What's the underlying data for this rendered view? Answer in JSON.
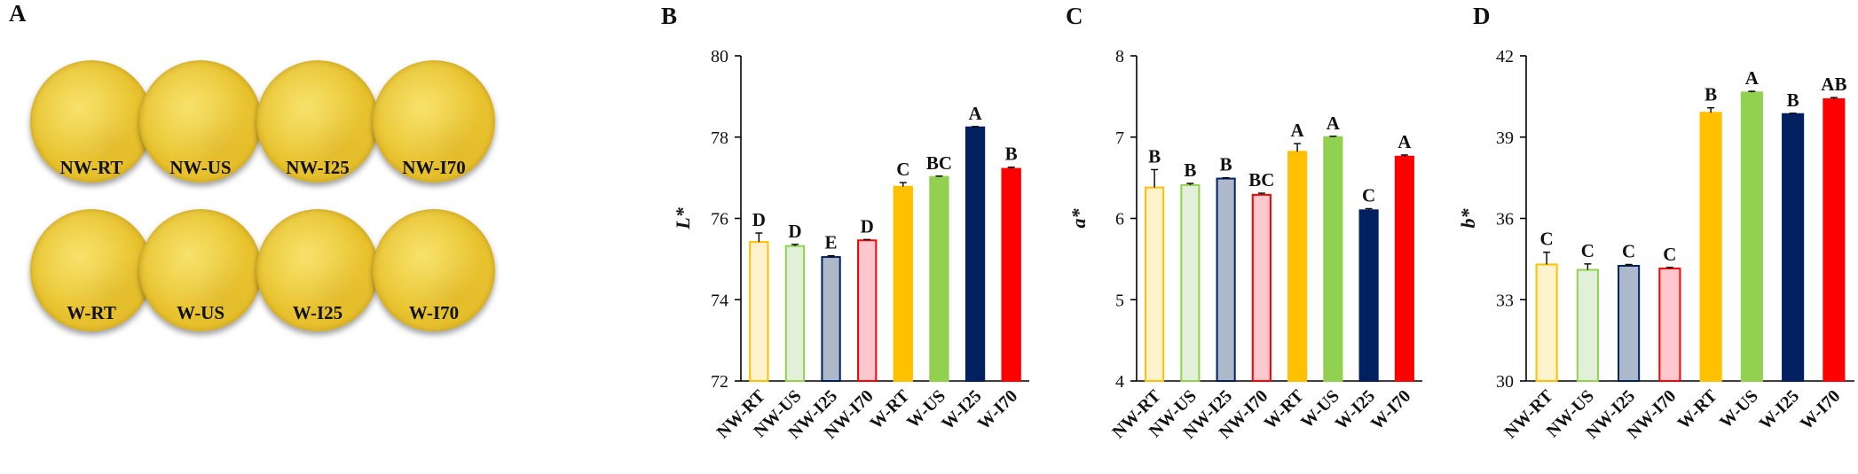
{
  "panels": {
    "A": {
      "letter": "A",
      "samples_row1": [
        "NW-RT",
        "NW-US",
        "NW-I25",
        "NW-I70"
      ],
      "samples_row2": [
        "W-RT",
        "W-US",
        "W-I25",
        "W-I70"
      ]
    }
  },
  "colors": {
    "RT": "#FFC000",
    "US": "#92D050",
    "I25": "#002060",
    "I70": "#FF0000",
    "RT_light": "#FFF2CC",
    "US_light": "#E2F0D9",
    "I25_light": "#ADB9CA",
    "I70_light": "#FFC7CE"
  },
  "chart_data": [
    {
      "panel": "B",
      "type": "bar",
      "categories": [
        "NW-RT",
        "NW-US",
        "NW-I25",
        "NW-I70",
        "W-RT",
        "W-US",
        "W-I25",
        "W-I70"
      ],
      "values": [
        75.42,
        75.32,
        75.05,
        75.46,
        76.78,
        77.02,
        78.24,
        77.22
      ],
      "errors": [
        0.22,
        0.04,
        0.03,
        0.02,
        0.1,
        0.02,
        0.02,
        0.04
      ],
      "letters": [
        "D",
        "D",
        "E",
        "D",
        "C",
        "BC",
        "A",
        "B"
      ],
      "ylabel": "L*",
      "ylim": [
        72,
        80
      ],
      "yticks": [
        "72",
        "74",
        "76",
        "78",
        "80"
      ]
    },
    {
      "panel": "C",
      "type": "bar",
      "categories": [
        "NW-RT",
        "NW-US",
        "NW-I25",
        "NW-I70",
        "W-RT",
        "W-US",
        "W-I25",
        "W-I70"
      ],
      "values": [
        6.38,
        6.41,
        6.49,
        6.29,
        6.82,
        7.0,
        6.1,
        6.76
      ],
      "errors": [
        0.22,
        0.02,
        0.01,
        0.02,
        0.1,
        0.01,
        0.02,
        0.02
      ],
      "letters": [
        "B",
        "B",
        "B",
        "BC",
        "A",
        "A",
        "C",
        "A"
      ],
      "ylabel": "a*",
      "ylim": [
        4,
        8
      ],
      "yticks": [
        "4",
        "5",
        "6",
        "7",
        "8"
      ]
    },
    {
      "panel": "D",
      "type": "bar",
      "categories": [
        "NW-RT",
        "NW-US",
        "NW-I25",
        "NW-I70",
        "W-RT",
        "W-US",
        "W-I25",
        "W-I70"
      ],
      "values": [
        34.3,
        34.1,
        34.25,
        34.15,
        39.9,
        40.65,
        39.85,
        40.4
      ],
      "errors": [
        0.45,
        0.22,
        0.05,
        0.04,
        0.18,
        0.04,
        0.03,
        0.06
      ],
      "letters": [
        "C",
        "C",
        "C",
        "C",
        "B",
        "A",
        "B",
        "AB"
      ],
      "ylabel": "b*",
      "ylim": [
        30,
        42
      ],
      "yticks": [
        "30",
        "33",
        "36",
        "39",
        "42"
      ]
    }
  ]
}
